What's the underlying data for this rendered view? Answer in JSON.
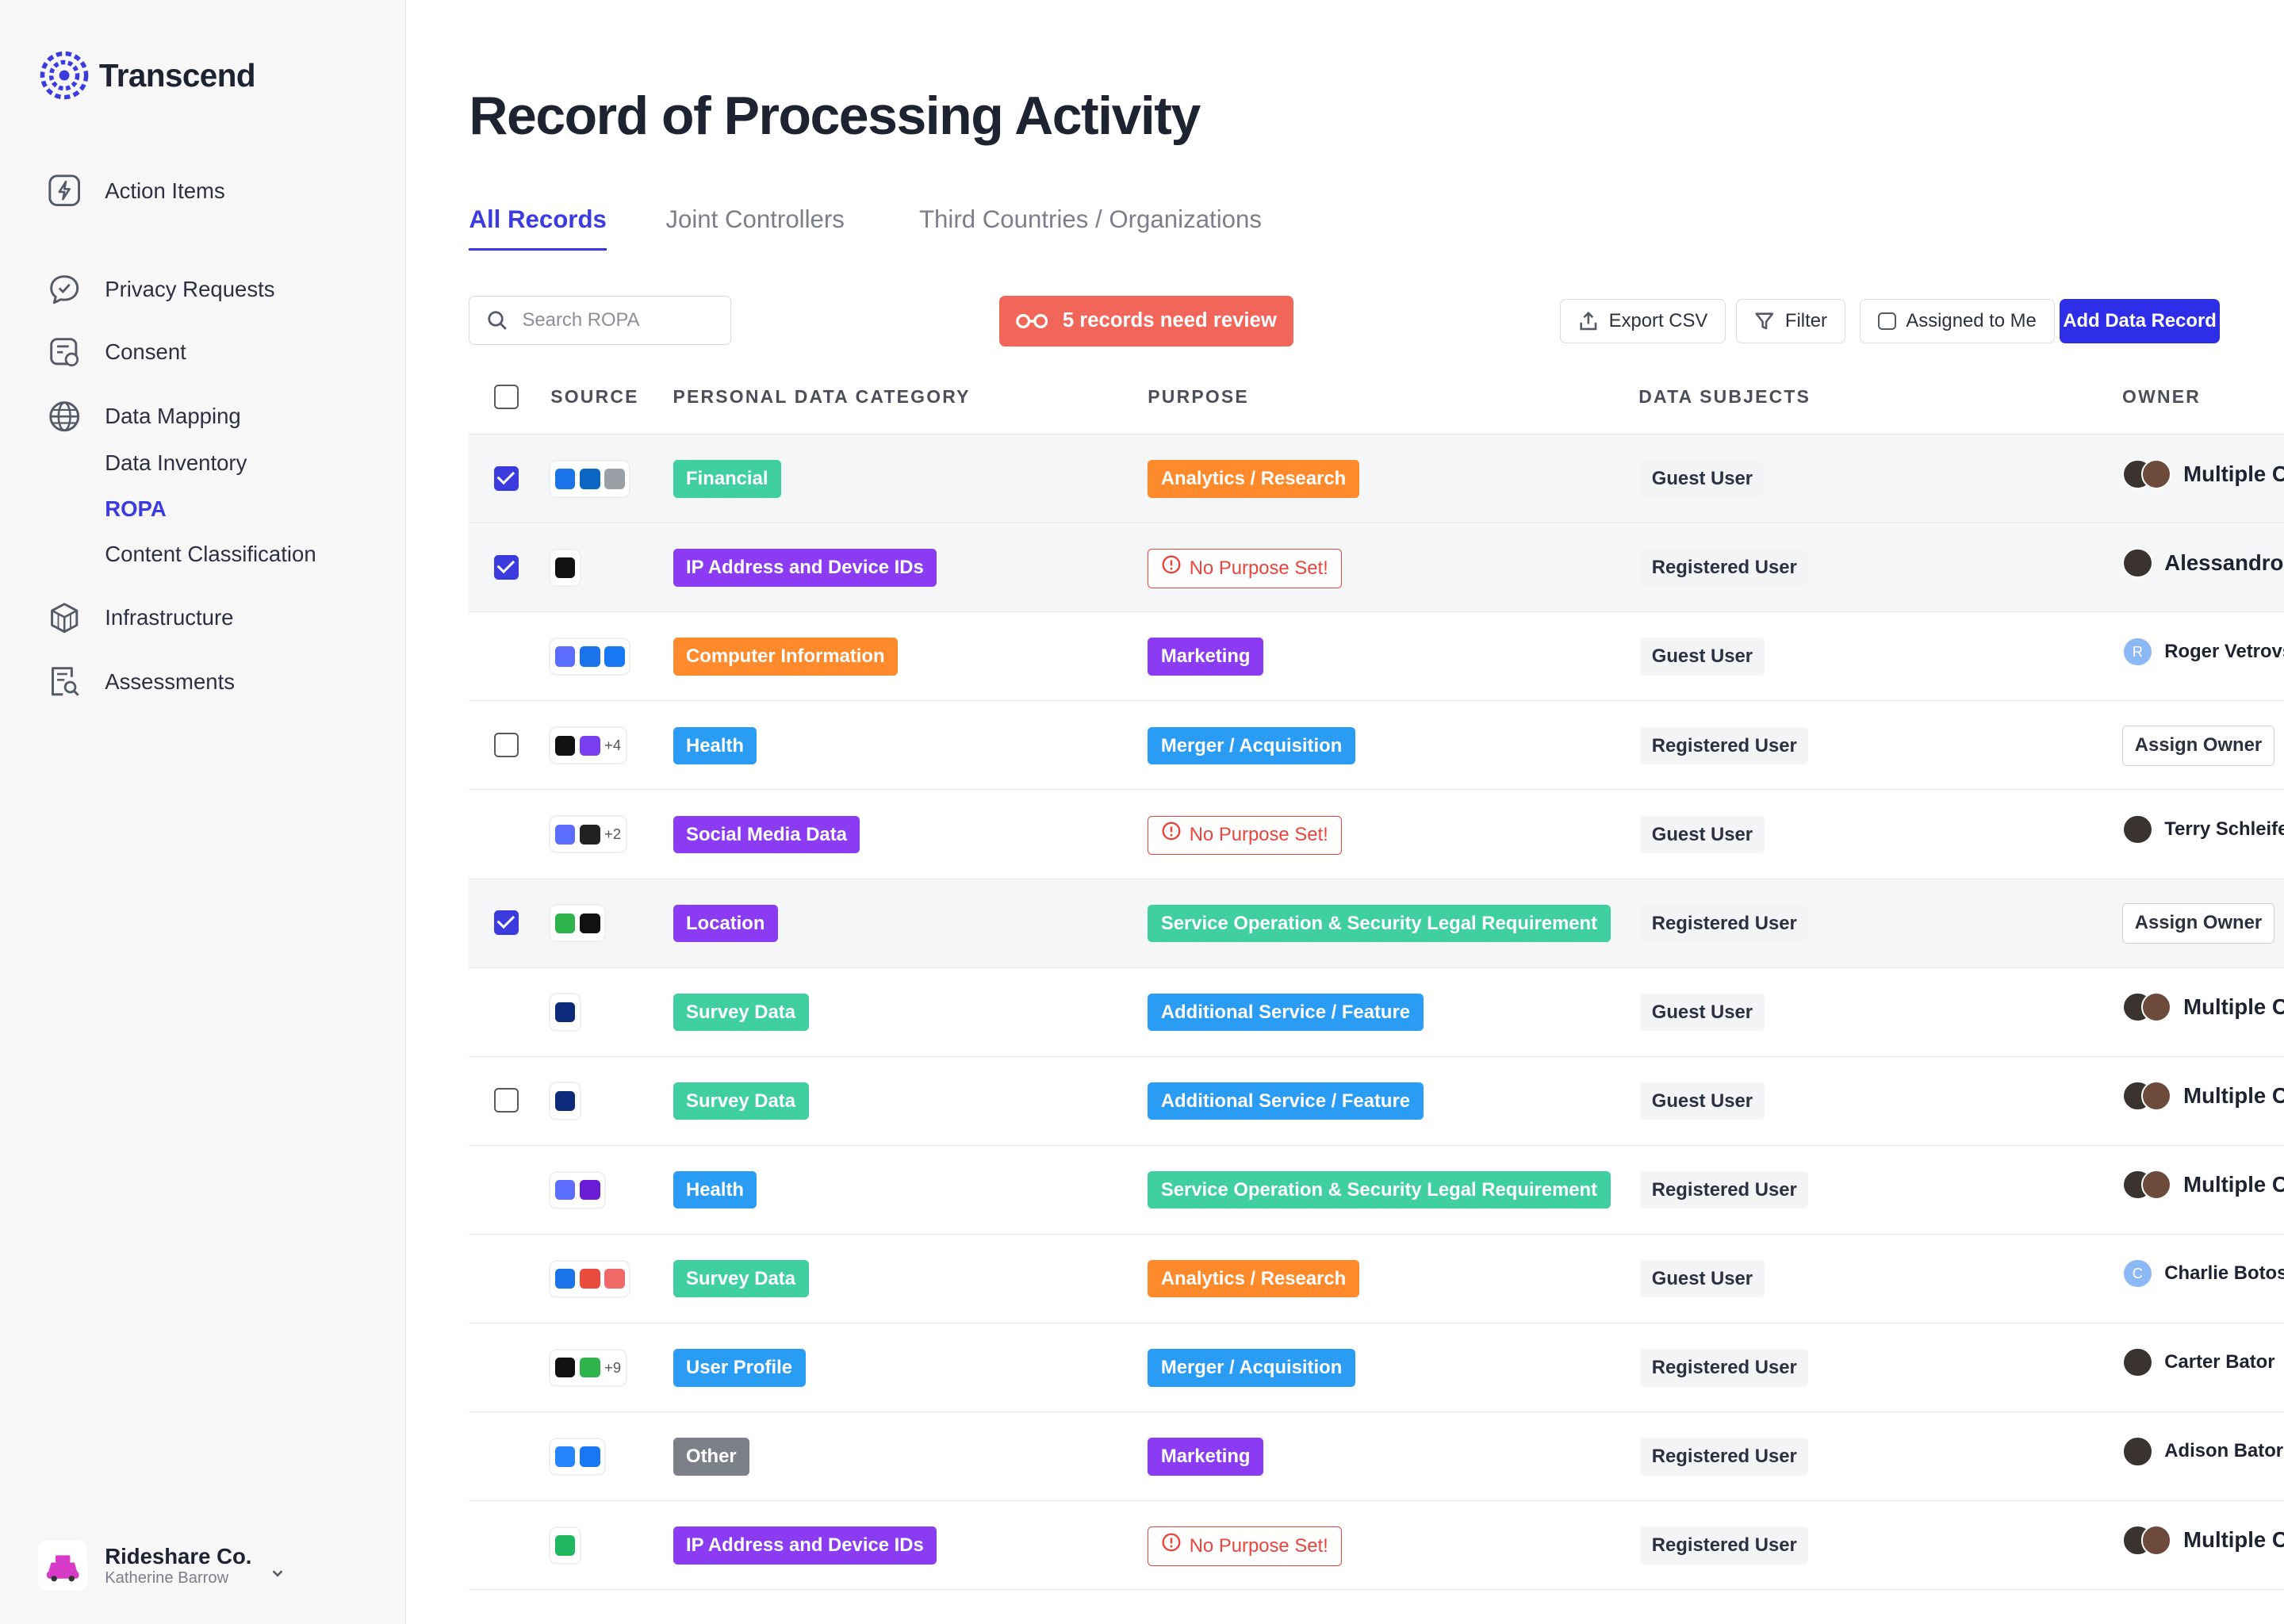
{
  "brand": {
    "name": "Transcend"
  },
  "nav": [
    {
      "label": "Action Items",
      "icon": "bolt-icon"
    },
    {
      "label": "Privacy Requests",
      "icon": "chat-icon"
    },
    {
      "label": "Consent",
      "icon": "consent-icon"
    },
    {
      "label": "Data Mapping",
      "icon": "globe-icon"
    },
    {
      "label": "Infrastructure",
      "icon": "cube-icon"
    },
    {
      "label": "Assessments",
      "icon": "assessment-icon"
    }
  ],
  "subnav": [
    {
      "label": "Data Inventory",
      "active": false
    },
    {
      "label": "ROPA",
      "active": true
    },
    {
      "label": "Content Classification",
      "active": false
    }
  ],
  "org": {
    "name": "Rideshare Co.",
    "user": "Katherine Barrow"
  },
  "page": {
    "title": "Record of Processing Activity"
  },
  "tabs": [
    {
      "label": "All Records",
      "active": true
    },
    {
      "label": "Joint Controllers",
      "active": false
    },
    {
      "label": "Third Countries / Organizations",
      "active": false
    }
  ],
  "toolbar": {
    "search_placeholder": "Search ROPA",
    "review_label": "5 records need review",
    "export_label": "Export CSV",
    "filter_label": "Filter",
    "assigned_label": "Assigned to Me",
    "add_label": "Add Data Record"
  },
  "columns": [
    "SOURCE",
    "PERSONAL DATA CATEGORY",
    "PURPOSE",
    "DATA SUBJECTS",
    "OWNER"
  ],
  "colors": {
    "accent": "#3b3be0",
    "review": "#f2665a",
    "green": "#3fcfa1",
    "orange": "#ff8a2b",
    "purple": "#8b3bf2",
    "blue": "#2b9cf4",
    "gray": "#7b8089",
    "error": "#e8453c"
  },
  "rows": [
    {
      "checked": true,
      "source_extra": "",
      "category": "Financial",
      "category_color": "green",
      "purpose": "Analytics / Research",
      "purpose_color": "orange",
      "subjects": "Guest User",
      "owner": "Multiple C",
      "owner_type": "multi"
    },
    {
      "checked": true,
      "source_extra": "",
      "category": "IP Address and Device IDs",
      "category_color": "purple",
      "purpose": "No Purpose Set!",
      "purpose_color": "none",
      "subjects": "Registered User",
      "owner": "Alessandro",
      "owner_type": "big"
    },
    {
      "checked": null,
      "source_extra": "",
      "category": "Computer Information",
      "category_color": "orange",
      "purpose": "Marketing",
      "purpose_color": "purple",
      "subjects": "Guest User",
      "owner": "Roger Vetrovs",
      "owner_type": "letter",
      "owner_initial": "R"
    },
    {
      "checked": false,
      "source_extra": "+4",
      "category": "Health",
      "category_color": "blue",
      "purpose": "Merger / Acquisition",
      "purpose_color": "blue",
      "subjects": "Registered User",
      "owner": "Assign Owner",
      "owner_type": "assign"
    },
    {
      "checked": null,
      "source_extra": "+2",
      "category": "Social Media Data",
      "category_color": "purple",
      "purpose": "No Purpose Set!",
      "purpose_color": "none",
      "subjects": "Guest User",
      "owner": "Terry Schleife",
      "owner_type": "single"
    },
    {
      "checked": true,
      "source_extra": "",
      "category": "Location",
      "category_color": "purple",
      "purpose": "Service Operation & Security Legal Requirement",
      "purpose_color": "green",
      "subjects": "Registered User",
      "owner": "Assign Owner",
      "owner_type": "assign"
    },
    {
      "checked": null,
      "source_extra": "",
      "category": "Survey Data",
      "category_color": "green",
      "purpose": "Additional Service / Feature",
      "purpose_color": "blue",
      "subjects": "Guest User",
      "owner": "Multiple C",
      "owner_type": "multi"
    },
    {
      "checked": false,
      "source_extra": "",
      "category": "Survey Data",
      "category_color": "green",
      "purpose": "Additional Service / Feature",
      "purpose_color": "blue",
      "subjects": "Guest User",
      "owner": "Multiple C",
      "owner_type": "multi"
    },
    {
      "checked": null,
      "source_extra": "",
      "category": "Health",
      "category_color": "blue",
      "purpose": "Service Operation & Security Legal Requirement",
      "purpose_color": "green",
      "subjects": "Registered User",
      "owner": "Multiple C",
      "owner_type": "multi"
    },
    {
      "checked": null,
      "source_extra": "",
      "category": "Survey Data",
      "category_color": "green",
      "purpose": "Analytics / Research",
      "purpose_color": "orange",
      "subjects": "Guest User",
      "owner": "Charlie Botosh",
      "owner_type": "letter",
      "owner_initial": "C"
    },
    {
      "checked": null,
      "source_extra": "+9",
      "category": "User Profile",
      "category_color": "blue",
      "purpose": "Merger / Acquisition",
      "purpose_color": "blue",
      "subjects": "Registered User",
      "owner": "Carter Bator",
      "owner_type": "single"
    },
    {
      "checked": null,
      "source_extra": "",
      "category": "Other",
      "category_color": "gray",
      "purpose": "Marketing",
      "purpose_color": "purple",
      "subjects": "Registered User",
      "owner": "Adison Bator",
      "owner_type": "single"
    },
    {
      "checked": null,
      "source_extra": "",
      "category": "IP Address and Device IDs",
      "category_color": "purple",
      "purpose": "No Purpose Set!",
      "purpose_color": "none",
      "subjects": "Registered User",
      "owner": "Multiple C",
      "owner_type": "multi"
    }
  ]
}
